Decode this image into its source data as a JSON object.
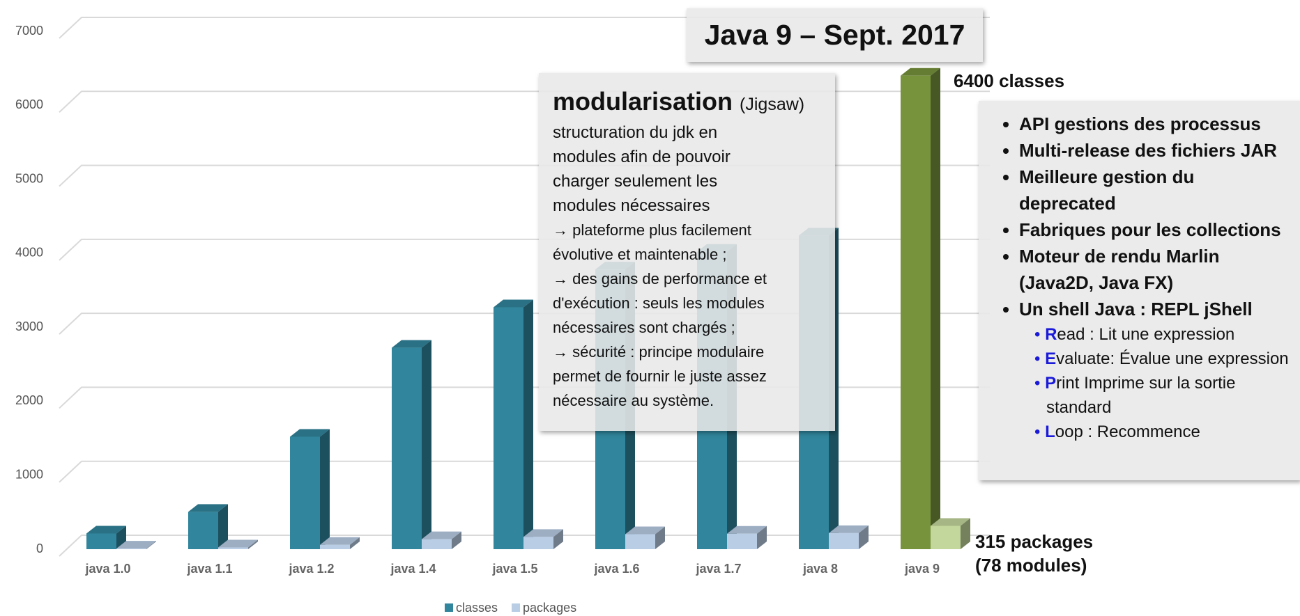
{
  "chart_data": {
    "type": "bar3d",
    "categories": [
      "java 1.0",
      "java 1.1",
      "java 1.2",
      "java 1.4",
      "java 1.5",
      "java 1.6",
      "java 1.7",
      "java 8",
      "java 9"
    ],
    "series": [
      {
        "name": "classes",
        "color": "#31859c",
        "colors": [
          "#31859c",
          "#31859c",
          "#31859c",
          "#31859c",
          "#31859c",
          "#31859c",
          "#31859c",
          "#31859c",
          "#77933c"
        ],
        "values": [
          212,
          504,
          1520,
          2723,
          3270,
          3780,
          4020,
          4240,
          6400
        ]
      },
      {
        "name": "packages",
        "color": "#b9cde5",
        "colors": [
          "#b9cde5",
          "#b9cde5",
          "#b9cde5",
          "#b9cde5",
          "#b9cde5",
          "#b9cde5",
          "#b9cde5",
          "#b9cde5",
          "#c3d69b"
        ],
        "values": [
          8,
          23,
          59,
          135,
          166,
          202,
          209,
          217,
          315
        ]
      }
    ],
    "ylim": [
      0,
      7000
    ],
    "yticks": [
      0,
      1000,
      2000,
      3000,
      4000,
      5000,
      6000,
      7000
    ],
    "grid": true,
    "legend": "bottom",
    "annotations": {
      "title": "Java 9 – Sept. 2017",
      "classes_label": "6400 classes",
      "packages_label": [
        "315 packages",
        "(78 modules)"
      ],
      "modularisation": {
        "heading": "modularisation",
        "heading_note": "(Jigsaw)",
        "intro": [
          "structuration du jdk en",
          "modules afin de pouvoir",
          "charger seulement les",
          "modules nécessaires"
        ],
        "points": [
          "→ plateforme plus facilement",
          "évolutive et maintenable ;",
          "→ des gains de performance et",
          "d'exécution : seuls les modules",
          "nécessaires sont chargés ;",
          "→ sécurité : principe modulaire",
          "permet de fournir le juste assez",
          "nécessaire au système."
        ]
      },
      "features": [
        "API gestions des processus",
        "Multi-release des fichiers JAR",
        "Meilleure gestion du deprecated",
        "Fabriques pour les collections",
        "Moteur de rendu Marlin (Java2D, Java FX)",
        "Un shell Java : REPL jShell"
      ],
      "repl": [
        {
          "letter": "R",
          "text": "ead : Lit une expression"
        },
        {
          "letter": "E",
          "text": "valuate: Évalue une expression"
        },
        {
          "letter": "P",
          "text": "rint  Imprime sur la sortie standard"
        },
        {
          "letter": "L",
          "text": "oop : Recommence"
        }
      ]
    }
  }
}
